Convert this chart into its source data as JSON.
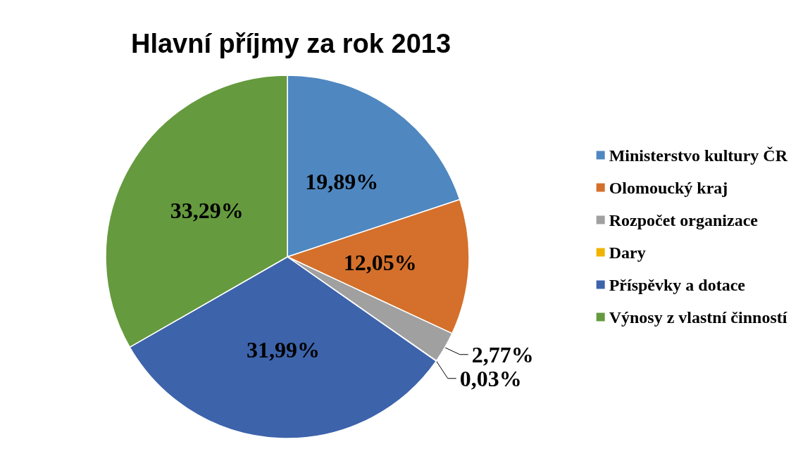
{
  "chart_data": {
    "type": "pie",
    "title": "Hlavní příjmy za rok 2013",
    "categories": [
      "Ministerstvo kultury ČR",
      "Olomoucký kraj",
      "Rozpočet organizace",
      "Dary",
      "Příspěvky a dotace",
      "Výnosy z vlastní činností"
    ],
    "values": [
      19.89,
      12.05,
      2.77,
      0.03,
      31.99,
      33.29
    ],
    "colors": [
      "#4f87c0",
      "#d4702b",
      "#a0a0a0",
      "#f0b400",
      "#3d63ab",
      "#659a3e"
    ],
    "value_labels": [
      "19,89%",
      "12,05%",
      "2,77%",
      "0,03%",
      "31,99%",
      "33,29%"
    ],
    "legend": "right"
  }
}
